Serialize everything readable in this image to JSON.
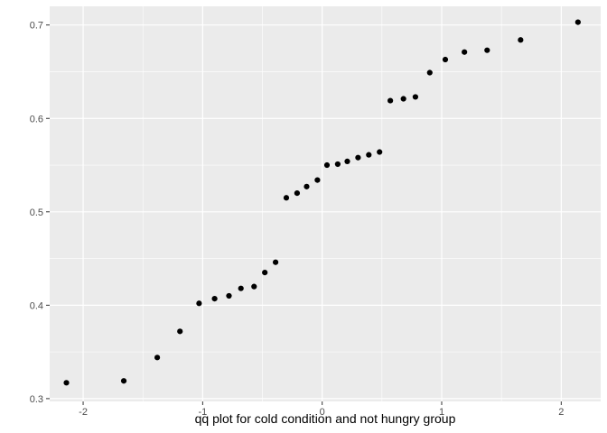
{
  "chart_data": {
    "type": "scatter",
    "title": "",
    "xlabel": "qq plot for cold condition and not hungry group",
    "ylabel": "",
    "xlim": [
      -2.28,
      2.33
    ],
    "ylim": [
      0.297,
      0.72
    ],
    "x_ticks": [
      -2,
      -1,
      0,
      1,
      2
    ],
    "x_tick_labels": [
      "-2",
      "-1",
      "0",
      "1",
      "2"
    ],
    "y_ticks": [
      0.3,
      0.4,
      0.5,
      0.6,
      0.7
    ],
    "y_tick_labels": [
      "0.3",
      "0.4",
      "0.5",
      "0.6",
      "0.7"
    ],
    "grid": true,
    "points": [
      {
        "x": -2.14,
        "y": 0.317
      },
      {
        "x": -1.66,
        "y": 0.319
      },
      {
        "x": -1.38,
        "y": 0.344
      },
      {
        "x": -1.19,
        "y": 0.372
      },
      {
        "x": -1.03,
        "y": 0.402
      },
      {
        "x": -0.9,
        "y": 0.407
      },
      {
        "x": -0.78,
        "y": 0.41
      },
      {
        "x": -0.68,
        "y": 0.418
      },
      {
        "x": -0.57,
        "y": 0.42
      },
      {
        "x": -0.48,
        "y": 0.435
      },
      {
        "x": -0.39,
        "y": 0.446
      },
      {
        "x": -0.3,
        "y": 0.515
      },
      {
        "x": -0.21,
        "y": 0.52
      },
      {
        "x": -0.13,
        "y": 0.527
      },
      {
        "x": -0.04,
        "y": 0.534
      },
      {
        "x": 0.04,
        "y": 0.55
      },
      {
        "x": 0.13,
        "y": 0.551
      },
      {
        "x": 0.21,
        "y": 0.554
      },
      {
        "x": 0.3,
        "y": 0.558
      },
      {
        "x": 0.39,
        "y": 0.561
      },
      {
        "x": 0.48,
        "y": 0.564
      },
      {
        "x": 0.57,
        "y": 0.619
      },
      {
        "x": 0.68,
        "y": 0.621
      },
      {
        "x": 0.78,
        "y": 0.623
      },
      {
        "x": 0.9,
        "y": 0.649
      },
      {
        "x": 1.03,
        "y": 0.663
      },
      {
        "x": 1.19,
        "y": 0.671
      },
      {
        "x": 1.38,
        "y": 0.673
      },
      {
        "x": 1.66,
        "y": 0.684
      },
      {
        "x": 2.14,
        "y": 0.703
      }
    ],
    "colors": {
      "panel_background": "#ebebeb",
      "grid_major": "#ffffff",
      "point": "#000000",
      "tick_label": "#4d4d4d",
      "tick_mark": "#333333"
    }
  }
}
